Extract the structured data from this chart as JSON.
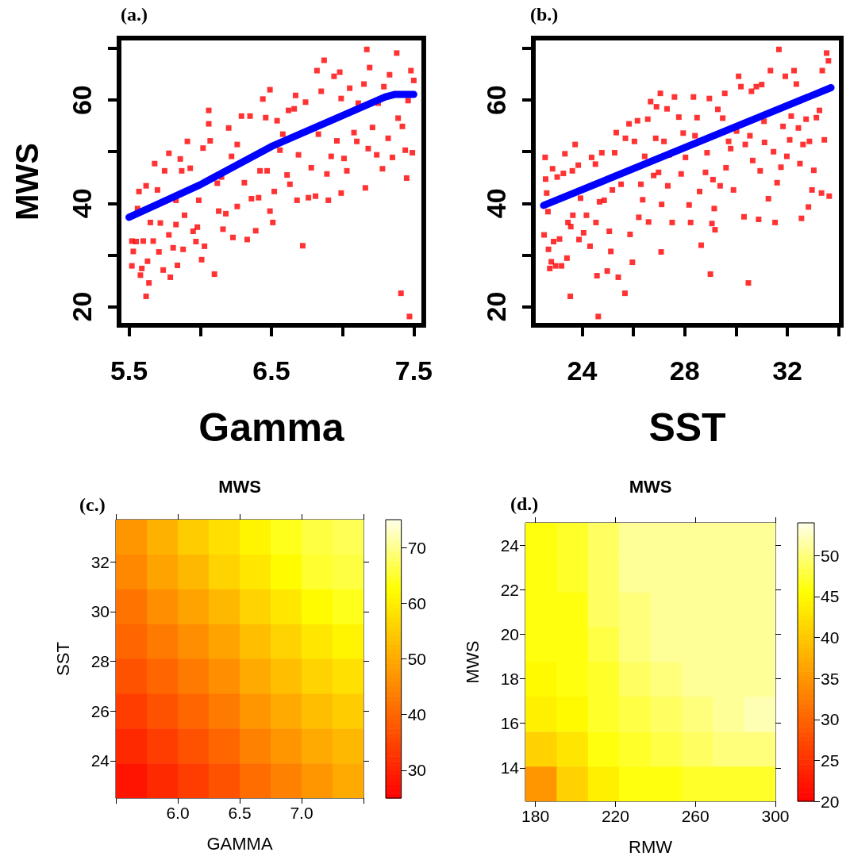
{
  "chart_data": [
    {
      "type": "scatter",
      "xlabel": "Gamma",
      "ylabel": "MWS",
      "annotations": [
        "(a.)"
      ],
      "xlim": [
        5.43,
        7.57
      ],
      "ylim": [
        16.4,
        72
      ],
      "xticks": [
        5.5,
        {
          "value": 6,
          "label": null
        },
        6.5,
        {
          "value": 7,
          "label": null
        },
        7.5
      ],
      "yticks": [
        20,
        {
          "value": 30,
          "label": null
        },
        40,
        {
          "value": 50,
          "label": null
        },
        60,
        {
          "value": 70,
          "label": null
        }
      ],
      "marker": "square",
      "series": [
        {
          "color": "#ff0000",
          "x": [
            5.52,
            5.52,
            5.53,
            5.55,
            5.56,
            5.57,
            5.58,
            5.59,
            5.6,
            5.62,
            5.63,
            5.64,
            5.62,
            5.65,
            5.68,
            5.7,
            5.67,
            5.71,
            5.72,
            5.74,
            5.75,
            5.78,
            5.78,
            5.79,
            5.81,
            5.83,
            5.83,
            5.84,
            5.86,
            5.87,
            5.88,
            5.89,
            5.91,
            5.93,
            5.95,
            5.97,
            5.98,
            5.99,
            6.01,
            6.02,
            6.03,
            6.06,
            6.06,
            6.07,
            6.1,
            6.12,
            6.13,
            6.15,
            6.16,
            6.18,
            6.2,
            6.22,
            6.23,
            6.26,
            6.26,
            6.29,
            6.31,
            6.33,
            6.35,
            6.36,
            6.39,
            6.41,
            6.42,
            6.44,
            6.46,
            6.47,
            6.49,
            6.49,
            6.51,
            6.52,
            6.54,
            6.56,
            6.58,
            6.61,
            6.62,
            6.63,
            6.66,
            6.67,
            6.68,
            6.69,
            6.72,
            6.74,
            6.76,
            6.78,
            6.81,
            6.82,
            6.83,
            6.85,
            6.87,
            6.89,
            6.9,
            6.92,
            6.94,
            6.96,
            6.98,
            6.99,
            6.99,
            7.01,
            7.03,
            7.05,
            7.08,
            7.1,
            7.11,
            7.15,
            7.16,
            7.17,
            7.18,
            7.19,
            7.21,
            7.24,
            7.25,
            7.28,
            7.29,
            7.32,
            7.33,
            7.35,
            7.38,
            7.39,
            7.41,
            7.42,
            7.45,
            7.44,
            7.46,
            7.47,
            7.48,
            7.49,
            7.5
          ],
          "values": [
            32.7,
            27.9,
            30.7,
            32.6,
            39.0,
            42.3,
            26.1,
            27.4,
            32.7,
            22.0,
            28.8,
            24.6,
            43.4,
            36.3,
            47.7,
            42.6,
            32.7,
            30.6,
            36.2,
            27.1,
            46.3,
            49.7,
            33.9,
            25.7,
            31.4,
            35.9,
            40.6,
            28.0,
            48.6,
            46.3,
            31.1,
            37.7,
            52.0,
            46.8,
            34.6,
            32.6,
            35.4,
            40.6,
            29.1,
            50.7,
            31.7,
            55.4,
            58.0,
            52.1,
            26.3,
            43.9,
            38.5,
            45.1,
            35.0,
            38.0,
            54.6,
            49.1,
            33.4,
            51.4,
            39.4,
            56.9,
            44.0,
            33.0,
            56.9,
            40.9,
            34.7,
            41.1,
            46.3,
            60.2,
            56.6,
            46.3,
            62.0,
            38.5,
            36.3,
            42.3,
            56.0,
            50.3,
            53.4,
            45.5,
            58.0,
            43.7,
            58.3,
            60.9,
            40.6,
            49.4,
            31.8,
            59.6,
            41.1,
            46.9,
            41.4,
            65.7,
            53.4,
            61.7,
            67.7,
            45.7,
            40.6,
            49.1,
            64.6,
            52.1,
            65.4,
            60.3,
            42.0,
            48.7,
            46.3,
            62.3,
            53.7,
            52.0,
            59.4,
            63.1,
            43.0,
            69.8,
            50.6,
            66.3,
            54.7,
            49.4,
            59.4,
            46.7,
            62.6,
            52.6,
            64.9,
            48.9,
            69.1,
            56.5,
            22.6,
            54.9,
            44.9,
            50.3,
            59.9,
            18.1,
            65.7,
            49.8,
            63.8
          ]
        },
        {
          "type": "line",
          "marker": "none",
          "color": "#0000ff",
          "x": [
            5.5,
            6.0,
            6.5,
            7.0,
            7.3,
            7.37,
            7.5
          ],
          "values": [
            37.3,
            43.6,
            51.0,
            57.0,
            60.6,
            61.1,
            61.1
          ]
        }
      ]
    },
    {
      "type": "scatter",
      "xlabel": "SST",
      "annotations": [
        "(b.)"
      ],
      "xlim": [
        22.1,
        34.1
      ],
      "ylim": [
        16.4,
        72
      ],
      "xticks": [
        24,
        {
          "value": 26,
          "label": null
        },
        28,
        {
          "value": 30,
          "label": null
        },
        32,
        {
          "value": 34,
          "label": null
        }
      ],
      "yticks": [
        20,
        {
          "value": 30,
          "label": null
        },
        40,
        {
          "value": 50,
          "label": null
        },
        60,
        {
          "value": 70,
          "label": null
        }
      ],
      "marker": "square",
      "series": [
        {
          "color": "#ff0000",
          "x": [
            22.56,
            22.58,
            22.62,
            22.52,
            22.67,
            22.69,
            22.74,
            22.8,
            22.85,
            22.89,
            22.97,
            23.03,
            23.12,
            23.2,
            23.27,
            23.33,
            23.41,
            23.45,
            23.54,
            23.56,
            23.62,
            23.64,
            23.73,
            23.85,
            23.88,
            23.94,
            24.06,
            24.17,
            24.31,
            24.37,
            24.52,
            24.54,
            24.58,
            24.63,
            24.68,
            24.77,
            24.86,
            24.98,
            25.06,
            25.12,
            25.18,
            25.27,
            25.33,
            25.41,
            25.52,
            25.67,
            25.69,
            25.83,
            25.87,
            25.96,
            26.04,
            26.16,
            26.21,
            26.29,
            26.36,
            26.44,
            26.56,
            26.59,
            26.67,
            26.79,
            26.87,
            26.9,
            26.98,
            27.05,
            27.08,
            27.1,
            27.19,
            27.31,
            27.34,
            27.4,
            27.51,
            27.6,
            27.77,
            27.86,
            27.94,
            28.03,
            28.17,
            28.23,
            28.34,
            28.4,
            28.48,
            28.58,
            28.64,
            28.81,
            28.87,
            28.96,
            29.0,
            29.06,
            29.1,
            29.15,
            29.18,
            29.29,
            29.38,
            29.48,
            29.56,
            29.61,
            29.71,
            29.79,
            29.9,
            30.02,
            30.1,
            30.19,
            30.31,
            30.36,
            30.48,
            30.54,
            30.6,
            30.65,
            30.79,
            30.88,
            30.94,
            31.0,
            31.09,
            31.11,
            31.26,
            31.34,
            31.46,
            31.52,
            31.6,
            31.67,
            31.75,
            31.83,
            31.92,
            31.98,
            32.09,
            32.15,
            32.26,
            32.35,
            32.43,
            32.49,
            32.55,
            32.61,
            32.73,
            32.82,
            32.86,
            32.96,
            33.03,
            33.13,
            33.25,
            33.33,
            33.36,
            33.44,
            33.53,
            33.63,
            33.6
          ],
          "values": [
            48.9,
            44.7,
            42.0,
            33.9,
            38.4,
            31.1,
            27.4,
            28.7,
            46.7,
            32.6,
            27.9,
            45.1,
            33.1,
            27.9,
            45.8,
            49.6,
            29.4,
            36.3,
            22.0,
            35.5,
            46.3,
            37.7,
            51.4,
            47.4,
            33.0,
            41.0,
            34.3,
            37.7,
            31.7,
            48.9,
            47.6,
            36.3,
            26.0,
            18.1,
            40.3,
            49.8,
            40.6,
            26.9,
            34.6,
            30.7,
            42.6,
            49.8,
            53.7,
            25.7,
            43.7,
            22.6,
            52.6,
            55.4,
            34.0,
            28.6,
            52.0,
            56.0,
            37.3,
            43.7,
            40.7,
            49.1,
            56.3,
            36.4,
            59.7,
            45.4,
            52.6,
            58.7,
            46.0,
            61.3,
            30.6,
            39.8,
            52.0,
            58.3,
            43.4,
            49.4,
            36.3,
            60.6,
            56.7,
            45.7,
            53.6,
            48.9,
            39.7,
            36.3,
            60.6,
            53.1,
            56.6,
            42.3,
            31.9,
            46.0,
            49.8,
            60.3,
            26.3,
            36.1,
            44.6,
            39.0,
            34.9,
            58.2,
            43.4,
            56.5,
            61.3,
            46.9,
            52.0,
            50.6,
            42.6,
            54.0,
            64.6,
            62.6,
            37.4,
            51.4,
            24.6,
            53.1,
            61.7,
            48.3,
            62.6,
            36.9,
            46.3,
            63.0,
            55.9,
            51.8,
            40.9,
            65.7,
            50.0,
            36.3,
            44.0,
            69.8,
            47.0,
            54.9,
            64.6,
            49.1,
            52.3,
            56.9,
            65.7,
            63.1,
            54.6,
            47.7,
            37.1,
            51.4,
            56.3,
            39.3,
            52.0,
            42.6,
            46.4,
            56.6,
            58.0,
            42.0,
            65.7,
            52.3,
            69.1,
            41.4,
            67.6
          ]
        },
        {
          "type": "line",
          "marker": "none",
          "color": "#0000ff",
          "x": [
            22.5,
            33.7
          ],
          "values": [
            39.6,
            62.4
          ]
        }
      ]
    },
    {
      "type": "heatmap",
      "title": "MWS",
      "xlabel": "GAMMA",
      "ylabel": "SST",
      "annotations": [
        "(c.)"
      ],
      "xlim": [
        5.5,
        7.5
      ],
      "ylim": [
        22.5,
        33.7
      ],
      "xticks": [
        {
          "value": 5.5,
          "label": null
        },
        {
          "value": 6,
          "label": "6.0"
        },
        6.5,
        {
          "value": 7,
          "label": "7.0"
        },
        {
          "value": 7.5,
          "label": null
        }
      ],
      "yticks": [
        24,
        26,
        28,
        30,
        32
      ],
      "clim": [
        25,
        75
      ],
      "cticks": [
        30,
        40,
        50,
        60,
        70
      ],
      "x": [
        5.625,
        5.875,
        6.125,
        6.375,
        6.625,
        6.875,
        7.125,
        7.375
      ],
      "y": [
        33.0,
        31.6,
        30.2,
        28.8,
        27.4,
        26.0,
        24.6,
        23.2
      ],
      "cells": [
        [
          47,
          51,
          55,
          58,
          61,
          64,
          66,
          67
        ],
        [
          45,
          49,
          52,
          56,
          59,
          62,
          65,
          66
        ],
        [
          42,
          46,
          49,
          52,
          56,
          59,
          62,
          64
        ],
        [
          40,
          43,
          46,
          49,
          53,
          56,
          59,
          61
        ],
        [
          37,
          40,
          43,
          46,
          50,
          53,
          56,
          58
        ],
        [
          34,
          37,
          40,
          43,
          47,
          50,
          53,
          55
        ],
        [
          31,
          34,
          37,
          40,
          44,
          47,
          50,
          52
        ],
        [
          28,
          31,
          34,
          37,
          41,
          44,
          47,
          50
        ]
      ]
    },
    {
      "type": "heatmap",
      "title": "MWS",
      "xlabel": "RMW",
      "ylabel": "MWS",
      "annotations": [
        "(d.)"
      ],
      "xlim": [
        175,
        300
      ],
      "ylim": [
        12.5,
        25
      ],
      "xticks": [
        180,
        220,
        260,
        300
      ],
      "yticks": [
        14,
        16,
        18,
        20,
        22,
        24
      ],
      "clim": [
        20,
        54
      ],
      "cticks": [
        20,
        25,
        30,
        35,
        40,
        45,
        50
      ],
      "x": [
        182.81,
        198.44,
        214.06,
        229.69,
        245.31,
        260.94,
        276.56,
        292.19
      ],
      "y": [
        24.22,
        22.66,
        21.09,
        19.53,
        17.97,
        16.41,
        14.84,
        13.28
      ],
      "cells": [
        [
          46,
          47,
          49,
          51,
          51,
          51,
          51,
          51
        ],
        [
          46,
          47,
          49,
          51,
          51,
          51,
          51,
          51
        ],
        [
          46,
          46,
          49,
          50,
          51,
          51,
          51,
          51
        ],
        [
          46,
          46,
          48,
          50,
          51,
          51,
          51,
          51
        ],
        [
          45,
          46,
          47,
          49,
          50,
          51,
          51,
          51
        ],
        [
          44,
          45,
          47,
          48,
          49,
          50,
          51,
          52
        ],
        [
          41,
          43,
          46,
          47,
          48,
          49,
          50,
          50
        ],
        [
          35,
          41,
          44,
          46,
          46,
          47,
          47,
          47
        ]
      ]
    }
  ]
}
